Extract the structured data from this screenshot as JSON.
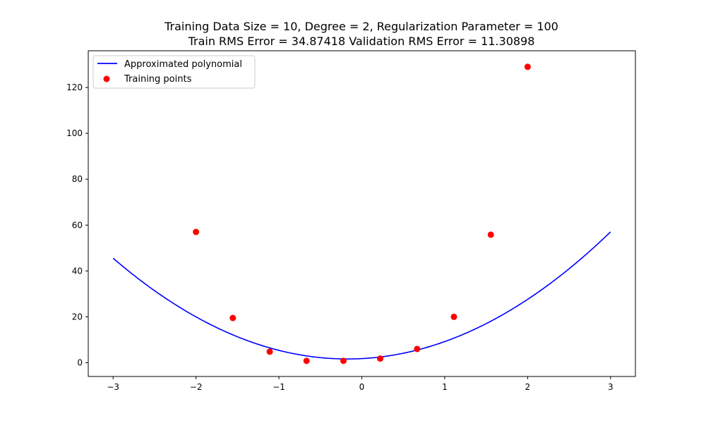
{
  "chart_data": {
    "type": "scatter",
    "title": "Training Data Size = 10, Degree = 2, Regularization Parameter = 100",
    "subtitle": "Train RMS Error = 34.87418 Validation RMS Error = 11.30898",
    "xlabel": "",
    "ylabel": "",
    "xlim": [
      -3.3,
      3.3
    ],
    "ylim": [
      -6,
      136
    ],
    "x_ticks": [
      -3,
      -2,
      -1,
      0,
      1,
      2,
      3
    ],
    "y_ticks": [
      0,
      20,
      40,
      60,
      80,
      100,
      120
    ],
    "grid": false,
    "legend_position": "upper-left",
    "series": [
      {
        "name": "Approximated polynomial",
        "kind": "line",
        "color": "#0000ff",
        "polynomial": {
          "coefficients_ascending": [
            1.8,
            1.91,
            5.5
          ],
          "x_range": [
            -3,
            3
          ]
        }
      },
      {
        "name": "Training points",
        "kind": "scatter",
        "color": "#ff0000",
        "x": [
          -2.0,
          -1.556,
          -1.111,
          -0.667,
          -0.222,
          0.222,
          0.667,
          1.111,
          1.556,
          2.0
        ],
        "y": [
          57.0,
          19.5,
          4.8,
          0.8,
          0.8,
          1.8,
          6.0,
          20.0,
          55.8,
          129.0
        ]
      }
    ]
  }
}
